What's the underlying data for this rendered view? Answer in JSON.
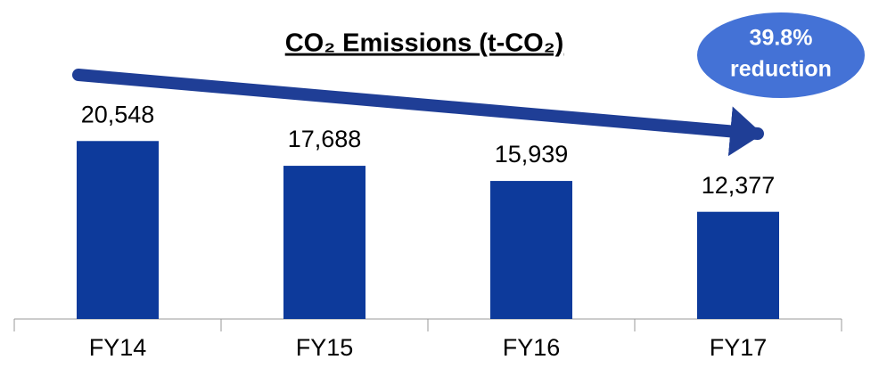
{
  "chart_data": {
    "type": "bar",
    "title": "CO₂ Emissions (t-CO₂)",
    "categories": [
      "FY14",
      "FY15",
      "FY16",
      "FY17"
    ],
    "values": [
      20548,
      17688,
      15939,
      12377
    ],
    "value_labels": [
      "20,548",
      "17,688",
      "15,939",
      "12,377"
    ],
    "color": "#0d3a9b",
    "ylim": [
      0,
      25000
    ],
    "annotation": [
      "39.8%",
      "reduction"
    ]
  }
}
